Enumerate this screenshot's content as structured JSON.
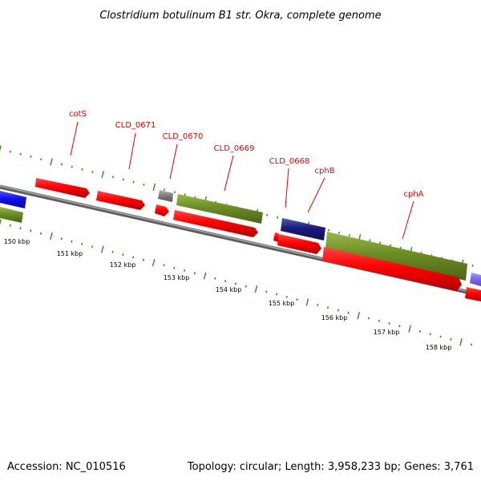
{
  "title": "Clostridium botulinum B1 str. Okra, complete genome",
  "footer": {
    "accession": "Accession: NC_010516",
    "summary": "Topology: circular; Length: 3,958,233 bp; Genes: 3,761"
  },
  "colors": {
    "forward_gene": "#ff0000",
    "reverse_gene": "#ff0000",
    "cds_green": "#6b8e23",
    "blue": "#1010ee",
    "navy": "#1a1a80",
    "lavender": "#7b68ee",
    "gray": "#808080",
    "backbone": "#808080",
    "tick": "#2e8b22",
    "label": "#e00000"
  },
  "kbp_labels": [
    "150 kbp",
    "151 kbp",
    "152 kbp",
    "153 kbp",
    "154 kbp",
    "155 kbp",
    "156 kbp",
    "157 kbp",
    "158 kbp"
  ],
  "gene_labels": [
    "cotS",
    "CLD_0671",
    "CLD_0670",
    "CLD_0669",
    "CLD_0668",
    "cphB",
    "cphA"
  ]
}
